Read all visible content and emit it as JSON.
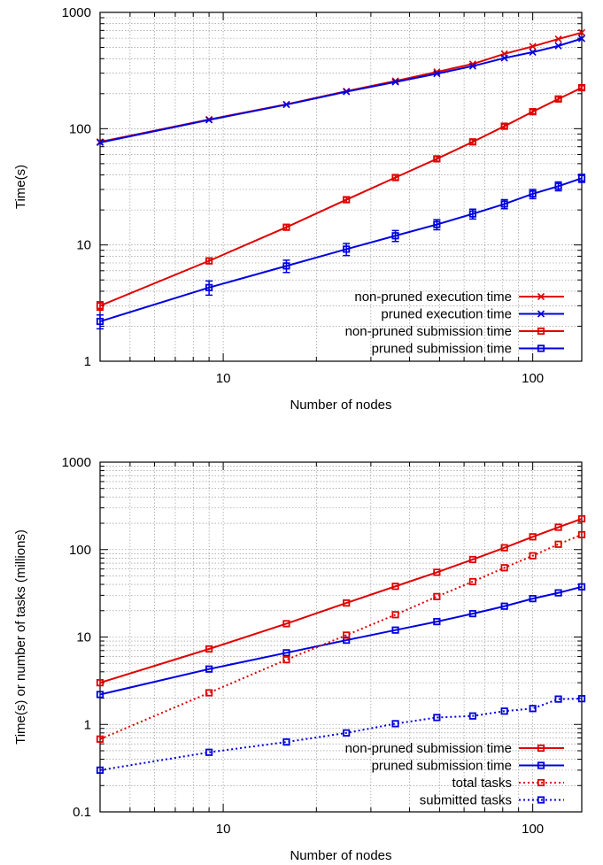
{
  "chart_data": [
    {
      "type": "line",
      "xscale": "log",
      "yscale": "log",
      "xlim": [
        4,
        144
      ],
      "ylim": [
        1,
        1000
      ],
      "xticks": [
        10,
        100
      ],
      "yticks": [
        1,
        10,
        100,
        1000
      ],
      "xlabel": "Number of nodes",
      "ylabel": "Time(s)",
      "grid": true,
      "legend_position": "bottom-right",
      "x": [
        4,
        9,
        16,
        25,
        36,
        49,
        64,
        81,
        100,
        121,
        144
      ],
      "series": [
        {
          "name": "non-pruned execution time",
          "color": "#e00000",
          "marker": "x",
          "dash": "solid",
          "values": [
            77,
            120,
            162,
            210,
            257,
            308,
            360,
            440,
            510,
            590,
            670
          ]
        },
        {
          "name": "pruned execution time",
          "color": "#0000e0",
          "marker": "x",
          "dash": "solid",
          "values": [
            76,
            119,
            161,
            208,
            252,
            297,
            345,
            405,
            455,
            515,
            595
          ]
        },
        {
          "name": "non-pruned submission time",
          "color": "#e00000",
          "marker": "square",
          "dash": "solid",
          "values": [
            3.0,
            7.3,
            14.2,
            24.5,
            38.0,
            55.0,
            77.0,
            105.0,
            140.0,
            180.0,
            225.0
          ],
          "errors": [
            0.25,
            0.4,
            0.7,
            1.2,
            1.8,
            2.5,
            3.5,
            4.5,
            6.0,
            7.5,
            9.0
          ]
        },
        {
          "name": "pruned submission time",
          "color": "#0000e0",
          "marker": "square",
          "dash": "solid",
          "values": [
            2.2,
            4.3,
            6.6,
            9.2,
            12.0,
            15.0,
            18.5,
            22.5,
            27.5,
            32.0,
            37.5
          ],
          "errors": [
            0.3,
            0.6,
            0.8,
            1.1,
            1.3,
            1.5,
            1.8,
            2.0,
            2.5,
            2.8,
            3.0
          ]
        }
      ]
    },
    {
      "type": "line",
      "xscale": "log",
      "yscale": "log",
      "xlim": [
        4,
        144
      ],
      "ylim": [
        0.1,
        1000
      ],
      "xticks": [
        10,
        100
      ],
      "yticks": [
        0.1,
        1,
        10,
        100,
        1000
      ],
      "xlabel": "Number of nodes",
      "ylabel": "Time(s) or number of tasks (millions)",
      "grid": true,
      "legend_position": "bottom-right",
      "x": [
        4,
        9,
        16,
        25,
        36,
        49,
        64,
        81,
        100,
        121,
        144
      ],
      "series": [
        {
          "name": "non-pruned submission time",
          "color": "#e00000",
          "marker": "square",
          "dash": "solid",
          "values": [
            3.0,
            7.3,
            14.2,
            24.5,
            38.0,
            55.0,
            77.0,
            105.0,
            140.0,
            180.0,
            225.0
          ]
        },
        {
          "name": "pruned submission time",
          "color": "#0000e0",
          "marker": "square",
          "dash": "solid",
          "values": [
            2.2,
            4.3,
            6.6,
            9.2,
            12.0,
            15.0,
            18.5,
            22.5,
            27.5,
            32.0,
            37.5
          ]
        },
        {
          "name": "total tasks",
          "color": "#e00000",
          "marker": "square",
          "dash": "dotted",
          "values": [
            0.68,
            2.3,
            5.5,
            10.5,
            18.0,
            29.0,
            43.0,
            62.0,
            85.0,
            115.0,
            148.0
          ]
        },
        {
          "name": "submitted tasks",
          "color": "#0000e0",
          "marker": "square",
          "dash": "dotted",
          "values": [
            0.3,
            0.48,
            0.63,
            0.8,
            1.02,
            1.2,
            1.25,
            1.42,
            1.52,
            1.95,
            1.97
          ]
        }
      ]
    }
  ]
}
